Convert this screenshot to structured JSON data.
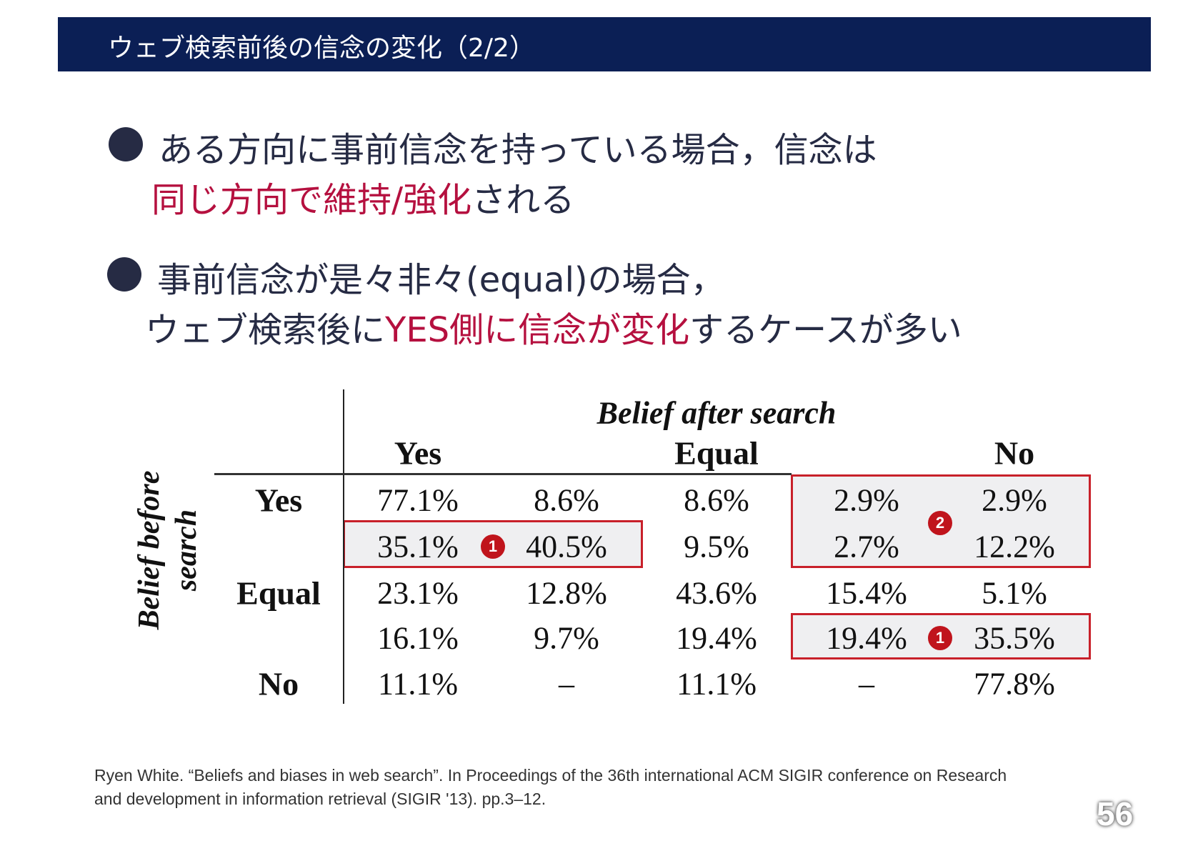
{
  "title": "ウェブ検索前後の信念の変化（2/2）",
  "bullets": [
    {
      "line1": "ある方向に事前信念を持っている場合，信念は",
      "line2_red": "同じ方向で維持/強化",
      "line2_rest": "される"
    },
    {
      "line1": "事前信念が是々非々(equal)の場合，",
      "line2_a": "ウェブ検索後に",
      "line2_red": "YES側に信念が変化",
      "line2_b": "するケースが多い"
    }
  ],
  "table": {
    "col_group": "Belief after search",
    "row_group": "Belief before search",
    "col_headers": [
      "Yes",
      "Equal",
      "No"
    ],
    "row_headers": [
      "Yes",
      "Equal",
      "No"
    ],
    "rows": [
      [
        "77.1%",
        "8.6%",
        "8.6%",
        "2.9%",
        "2.9%"
      ],
      [
        "35.1%",
        "40.5%",
        "9.5%",
        "2.7%",
        "12.2%"
      ],
      [
        "23.1%",
        "12.8%",
        "43.6%",
        "15.4%",
        "5.1%"
      ],
      [
        "16.1%",
        "9.7%",
        "19.4%",
        "19.4%",
        "35.5%"
      ],
      [
        "11.1%",
        "–",
        "11.1%",
        "–",
        "77.8%"
      ]
    ],
    "badges": [
      "1",
      "2",
      "1"
    ],
    "highlight_color": "#c8202a"
  },
  "footer": {
    "line1": "Ryen White. “Beliefs and biases in web search”. In Proceedings of the 36th international ACM SIGIR conference on Research",
    "line2": "and development in information retrieval (SIGIR '13). pp.3–12."
  },
  "page_number": "56"
}
